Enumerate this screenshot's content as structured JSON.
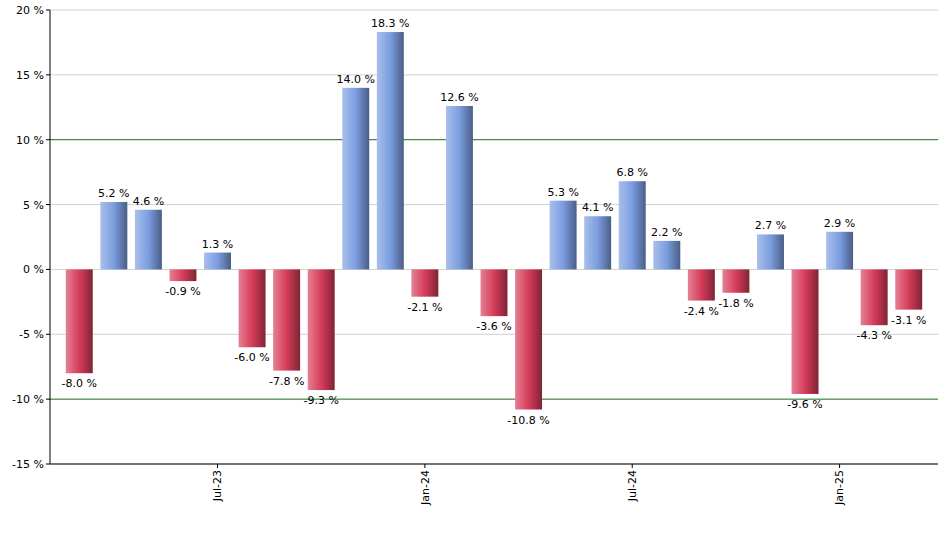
{
  "chart_data": {
    "type": "bar",
    "categories": [
      null,
      null,
      null,
      null,
      "Jul-23",
      null,
      null,
      null,
      null,
      null,
      "Jan-24",
      null,
      null,
      null,
      null,
      null,
      "Jul-24",
      null,
      null,
      null,
      null,
      null,
      "Jan-25",
      null,
      null
    ],
    "values": [
      -8.0,
      5.2,
      4.6,
      -0.9,
      1.3,
      -6.0,
      -7.8,
      -9.3,
      14.0,
      18.3,
      -2.1,
      12.6,
      -3.6,
      -10.8,
      5.3,
      4.1,
      6.8,
      2.2,
      -2.4,
      -1.8,
      2.7,
      -9.6,
      2.9,
      -4.3,
      -3.1
    ],
    "value_labels": [
      "-8.0 %",
      "5.2 %",
      "4.6 %",
      "-0.9 %",
      "1.3 %",
      "-6.0 %",
      "-7.8 %",
      "-9.3 %",
      "14.0 %",
      "18.3 %",
      "-2.1 %",
      "12.6 %",
      "-3.6 %",
      "-10.8 %",
      "5.3 %",
      "4.1 %",
      "6.8 %",
      "2.2 %",
      "-2.4 %",
      "-1.8 %",
      "2.7 %",
      "-9.6 %",
      "2.9 %",
      "-4.3 %",
      "-3.1 %"
    ],
    "colors": [
      "#d63c5a",
      "#7b9de0",
      "#7b9de0",
      "#d63c5a",
      "#7b9de0",
      "#d63c5a",
      "#d63c5a",
      "#d63c5a",
      "#7b9de0",
      "#7b9de0",
      "#d63c5a",
      "#7b9de0",
      "#d63c5a",
      "#d63c5a",
      "#7b9de0",
      "#7b9de0",
      "#7b9de0",
      "#7b9de0",
      "#d63c5a",
      "#d63c5a",
      "#7b9de0",
      "#d63c5a",
      "#7b9de0",
      "#d63c5a",
      "#d63c5a"
    ],
    "ylim": [
      -15,
      20
    ],
    "yticks": [
      {
        "value": -15,
        "label": "-15 %"
      },
      {
        "value": -10,
        "label": "-10 %"
      },
      {
        "value": -5,
        "label": "-5 %"
      },
      {
        "value": 0,
        "label": "0 %"
      },
      {
        "value": 5,
        "label": "5 %"
      },
      {
        "value": 10,
        "label": "10 %"
      },
      {
        "value": 15,
        "label": "15 %"
      },
      {
        "value": 20,
        "label": "20 %"
      }
    ],
    "grid": true,
    "data_labels": true
  }
}
